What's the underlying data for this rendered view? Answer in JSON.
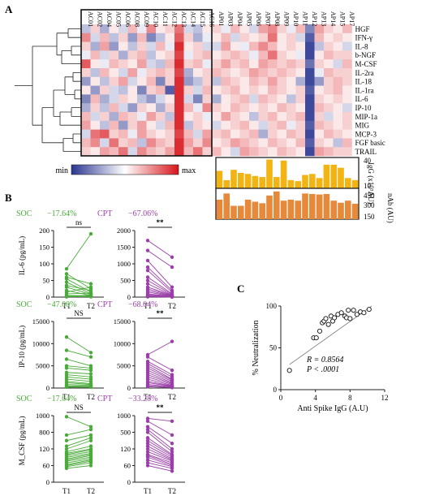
{
  "panel_labels": {
    "a": "A",
    "b": "B",
    "c": "C"
  },
  "heatmap": {
    "col_labels": [
      "AC01",
      "AC02",
      "AC04",
      "AC05",
      "AC06",
      "AC08",
      "AC09",
      "AC10",
      "AC11",
      "AC12",
      "AC13",
      "AC14",
      "AC15",
      "AC16",
      "AP01",
      "AP03",
      "AP04",
      "AP05",
      "AP06",
      "AP07",
      "AP08",
      "AP09",
      "AP10",
      "AP11",
      "AP12",
      "AP13",
      "AP14",
      "AP15",
      "AP17"
    ],
    "row_labels": [
      "HGF",
      "IFN-γ",
      "IL-8",
      "b-NGF",
      "M-CSF",
      "IL-2ra",
      "IL-18",
      "IL-1ra",
      "IL-6",
      "IP-10",
      "MIP-1a",
      "MIG",
      "MCP-3",
      "FGF basic",
      "TRAIL"
    ],
    "colorbar": {
      "min_label": "min",
      "max_label": "max",
      "low_color": "#2a3590",
      "mid_color": "#ffffff",
      "high_color": "#d7151b"
    },
    "values": [
      [
        -0.3,
        0.2,
        -0.4,
        0.1,
        -0.2,
        0.3,
        -0.1,
        0.5,
        0.1,
        0.2,
        0.6,
        -0.2,
        -0.3,
        0.1,
        0.2,
        -0.1,
        0.3,
        0.1,
        -0.2,
        0.4,
        0.5,
        0.2,
        -0.1,
        0.3,
        -0.6,
        0.4,
        0.2,
        0.1,
        0.3
      ],
      [
        0.5,
        -0.2,
        0.3,
        -0.3,
        0.2,
        -0.5,
        0.3,
        -0.6,
        -0.3,
        0.1,
        0.7,
        0.2,
        -0.4,
        -0.1,
        0.1,
        0.3,
        -0.2,
        0.2,
        0.1,
        0.2,
        0.6,
        0.1,
        0.2,
        -0.2,
        -0.8,
        0.3,
        0.1,
        0.2,
        0.1
      ],
      [
        0.2,
        -0.4,
        0.4,
        -0.5,
        0.1,
        -0.3,
        0.2,
        -0.2,
        0.3,
        -0.1,
        0.9,
        0.1,
        0.2,
        -0.2,
        -0.2,
        0.4,
        0.1,
        -0.1,
        0.3,
        0.5,
        0.3,
        0.1,
        0.2,
        0.1,
        -0.9,
        -0.3,
        0.2,
        0.1,
        -0.2
      ],
      [
        -0.1,
        0.3,
        -0.2,
        0.2,
        -0.4,
        0.2,
        0.3,
        -0.3,
        0.1,
        0.2,
        0.8,
        -0.1,
        0.2,
        0.3,
        0.1,
        0.2,
        0.3,
        0.2,
        -0.1,
        0.3,
        0.6,
        0.2,
        0.1,
        -0.1,
        -0.9,
        0.1,
        0.3,
        0.2,
        0.2
      ],
      [
        0.7,
        0.1,
        -0.1,
        0.3,
        0.2,
        0.1,
        0.4,
        -0.2,
        -0.3,
        0.3,
        0.9,
        0.2,
        0.3,
        -0.1,
        0.2,
        0.4,
        0.2,
        0.3,
        0.1,
        0.4,
        0.3,
        0.2,
        0.3,
        0.2,
        -0.7,
        0.2,
        0.1,
        -0.2,
        0.3
      ],
      [
        0.2,
        -0.3,
        0.3,
        0.1,
        -0.2,
        0.4,
        -0.1,
        0.2,
        0.3,
        0.2,
        0.8,
        -0.4,
        0.1,
        0.2,
        0.3,
        0.2,
        0.1,
        0.2,
        0.4,
        0.3,
        0.2,
        0.3,
        0.2,
        0.1,
        -0.9,
        -0.1,
        0.3,
        0.2,
        0.2
      ],
      [
        -0.5,
        0.1,
        -0.3,
        0.2,
        0.4,
        -0.2,
        0.1,
        0.3,
        -0.6,
        0.2,
        0.9,
        -0.5,
        -0.3,
        0.2,
        -0.3,
        0.3,
        0.2,
        0.1,
        0.3,
        0.2,
        0.4,
        0.2,
        0.1,
        -0.4,
        -0.9,
        -0.5,
        0.2,
        0.3,
        0.2
      ],
      [
        0.1,
        -0.5,
        0.2,
        -0.2,
        -0.3,
        0.1,
        -0.6,
        0.2,
        0.3,
        -0.8,
        0.9,
        0.2,
        -0.2,
        0.3,
        0.1,
        0.2,
        0.3,
        0.1,
        0.2,
        0.1,
        0.3,
        0.2,
        0.1,
        0.2,
        -0.8,
        0.1,
        0.2,
        0.3,
        0.1
      ],
      [
        -0.6,
        0.3,
        -0.4,
        -0.2,
        0.2,
        0.1,
        -0.3,
        -0.5,
        -0.2,
        0.1,
        0.9,
        -0.2,
        -0.6,
        0.2,
        -0.4,
        0.1,
        0.2,
        0.3,
        -0.2,
        0.3,
        0.2,
        0.1,
        -0.3,
        0.2,
        -0.9,
        0.2,
        0.1,
        0.2,
        0.1
      ],
      [
        -0.4,
        0.2,
        -0.3,
        0.3,
        -0.2,
        -0.5,
        0.2,
        0.1,
        -0.4,
        0.2,
        0.9,
        0.3,
        -0.1,
        0.5,
        0.2,
        0.1,
        0.3,
        0.2,
        0.1,
        0.2,
        0.1,
        0.3,
        0.2,
        0.1,
        -0.9,
        0.3,
        0.2,
        0.1,
        -0.2
      ],
      [
        0.3,
        -0.2,
        0.2,
        -0.4,
        0.3,
        0.2,
        -0.1,
        0.4,
        0.2,
        -0.3,
        0.9,
        0.1,
        0.2,
        -0.1,
        0.1,
        0.4,
        0.2,
        0.1,
        -0.3,
        0.2,
        0.3,
        0.1,
        0.2,
        0.3,
        -0.9,
        0.2,
        -0.2,
        0.1,
        0.2
      ],
      [
        0.4,
        0.1,
        -0.3,
        0.3,
        -0.5,
        0.2,
        0.4,
        0.1,
        -0.2,
        0.3,
        0.9,
        -0.3,
        0.2,
        0.1,
        -0.2,
        0.1,
        0.2,
        0.3,
        0.1,
        -0.2,
        0.2,
        0.3,
        -0.1,
        0.2,
        -0.8,
        0.3,
        0.2,
        0.1,
        0.2
      ],
      [
        -0.2,
        0.6,
        0.7,
        0.2,
        0.3,
        -0.1,
        0.4,
        0.2,
        0.1,
        0.2,
        0.8,
        0.3,
        -0.2,
        0.4,
        0.2,
        0.3,
        0.1,
        0.2,
        0.3,
        -0.4,
        0.2,
        0.1,
        0.3,
        0.2,
        -0.9,
        0.1,
        0.3,
        0.2,
        0.1
      ],
      [
        0.3,
        0.5,
        -0.2,
        0.6,
        0.2,
        0.3,
        -0.3,
        0.5,
        0.3,
        0.2,
        0.9,
        0.4,
        0.2,
        0.5,
        0.1,
        0.2,
        0.4,
        0.3,
        0.2,
        0.1,
        0.3,
        0.2,
        0.1,
        0.3,
        -0.8,
        0.2,
        0.1,
        -0.3,
        0.3
      ],
      [
        0.2,
        0.1,
        0.4,
        0.3,
        0.6,
        -0.2,
        0.5,
        0.3,
        0.2,
        0.4,
        0.9,
        0.3,
        0.6,
        0.2,
        0.3,
        0.1,
        -0.2,
        0.4,
        0.3,
        0.2,
        0.1,
        0.3,
        0.2,
        0.1,
        -0.9,
        0.4,
        0.3,
        0.2,
        0.2
      ]
    ]
  },
  "igg_bars": {
    "ylabel": "IgG (x10³AU)",
    "ticks": [
      "40",
      "10"
    ],
    "color": "#f2b413",
    "ymin": 10,
    "ymax": 40,
    "values": [
      27,
      18,
      28,
      25,
      24,
      22,
      21,
      38,
      21,
      37,
      18,
      17,
      23,
      24,
      20,
      33,
      33,
      30,
      20,
      18
    ]
  },
  "nab_bars": {
    "ylabel": "nAb (AU)",
    "ticks": [
      "450",
      "300",
      "150"
    ],
    "color": "#e6893a",
    "ymin": 150,
    "ymax": 450,
    "values": [
      340,
      400,
      280,
      280,
      340,
      320,
      305,
      380,
      420,
      330,
      340,
      330,
      400,
      395,
      390,
      395,
      330,
      310,
      330,
      300
    ]
  },
  "groups": {
    "soc": "SOC",
    "cpt": "CPT",
    "soc_color": "#4aab3a",
    "cpt_color": "#9a3fa8"
  },
  "paired_plots": [
    {
      "ylabel": "IL-6 (pg/mL)",
      "soc": {
        "pct": "−17.64%",
        "sig": "ns",
        "ticks": [
          "200",
          "150",
          "100",
          "50",
          "0"
        ],
        "ymax": 200,
        "t1": [
          85,
          70,
          60,
          55,
          45,
          35,
          30,
          20,
          15,
          10,
          5,
          3,
          2,
          1,
          1
        ],
        "t2": [
          190,
          25,
          40,
          15,
          10,
          20,
          8,
          5,
          30,
          12,
          4,
          2,
          6,
          3,
          1
        ]
      },
      "cpt": {
        "pct": "−67.06%",
        "sig": "**",
        "ticks": [
          "2000",
          "1500",
          "1000",
          "500",
          "0"
        ],
        "ymax": 2000,
        "t1": [
          1700,
          1400,
          1100,
          900,
          800,
          600,
          500,
          400,
          300,
          250,
          200,
          150,
          100,
          80,
          50,
          30,
          20,
          10
        ],
        "t2": [
          1200,
          900,
          300,
          200,
          150,
          100,
          80,
          60,
          50,
          40,
          30,
          25,
          20,
          15,
          10,
          8,
          5,
          3
        ]
      },
      "x_labels": [
        "T1",
        "T2"
      ]
    },
    {
      "ylabel": "IP-10 (pg/mL)",
      "soc": {
        "pct": "−47.00%",
        "sig": "NS",
        "ticks": [
          "15000",
          "10000",
          "5000",
          "0"
        ],
        "ymax": 15000,
        "t1": [
          11500,
          8500,
          6500,
          5000,
          4500,
          3500,
          3000,
          2500,
          2000,
          1500,
          1200,
          800,
          500,
          300,
          200
        ],
        "t2": [
          8000,
          7000,
          5000,
          4500,
          4000,
          3200,
          2500,
          2000,
          1500,
          1000,
          800,
          600,
          400,
          300,
          200
        ]
      },
      "cpt": {
        "pct": "−68.04%",
        "sig": "**",
        "ticks": [
          "15000",
          "10000",
          "5000",
          "0"
        ],
        "ymax": 15000,
        "t1": [
          7500,
          7000,
          6000,
          5500,
          5000,
          4500,
          4000,
          3500,
          3000,
          2500,
          2000,
          1500,
          1200,
          800,
          500,
          300
        ],
        "t2": [
          10500,
          4000,
          3000,
          2500,
          2000,
          1800,
          1500,
          1200,
          1000,
          800,
          600,
          500,
          400,
          300,
          200,
          100
        ]
      },
      "x_labels": [
        "T1",
        "T2"
      ]
    },
    {
      "ylabel": "M_CSF (pg/mL)",
      "soc": {
        "pct": "−17.64%",
        "sig": "NS",
        "ticks": [
          "1000",
          "800",
          "120",
          "60",
          "0"
        ],
        "ymax": 120,
        "t1": [
          118,
          85,
          75,
          65,
          60,
          55,
          52,
          50,
          48,
          45,
          42,
          40,
          38,
          35,
          32,
          30,
          28,
          25
        ],
        "t2": [
          100,
          95,
          85,
          80,
          75,
          65,
          60,
          58,
          55,
          52,
          50,
          48,
          45,
          42,
          40,
          38,
          35,
          30
        ]
      },
      "cpt": {
        "pct": "−33.28%",
        "sig": "**",
        "ticks": [
          "1000",
          "500",
          "120",
          "60",
          "0"
        ],
        "ymax": 120,
        "t1": [
          115,
          110,
          100,
          95,
          90,
          80,
          75,
          70,
          65,
          60,
          55,
          50,
          48,
          45,
          40,
          35,
          30
        ],
        "t2": [
          110,
          85,
          70,
          60,
          55,
          50,
          48,
          45,
          42,
          40,
          38,
          35,
          32,
          30,
          28,
          25,
          20
        ]
      },
      "x_labels": [
        "T1",
        "T2"
      ]
    }
  ],
  "chart_data": {
    "type": "scatter",
    "xlabel": "Anti Spike IgG (A.U)",
    "ylabel": "% Neutralization",
    "xlim": [
      0,
      12
    ],
    "ylim": [
      0,
      100
    ],
    "xticks": [
      "0",
      "4",
      "8",
      "12"
    ],
    "yticks": [
      "100",
      "50",
      "0"
    ],
    "annotation_r": "R = 0.8564",
    "annotation_p": "P < .0001",
    "x": [
      1.0,
      3.8,
      4.1,
      4.5,
      4.8,
      5.0,
      5.2,
      5.5,
      5.8,
      6.0,
      6.2,
      6.6,
      7.0,
      7.4,
      7.6,
      7.8,
      8.0,
      8.4,
      8.8,
      9.2,
      9.6,
      10.2
    ],
    "y": [
      23,
      62,
      62,
      70,
      80,
      82,
      85,
      78,
      88,
      82,
      86,
      90,
      92,
      88,
      86,
      95,
      85,
      95,
      90,
      93,
      92,
      96
    ]
  }
}
